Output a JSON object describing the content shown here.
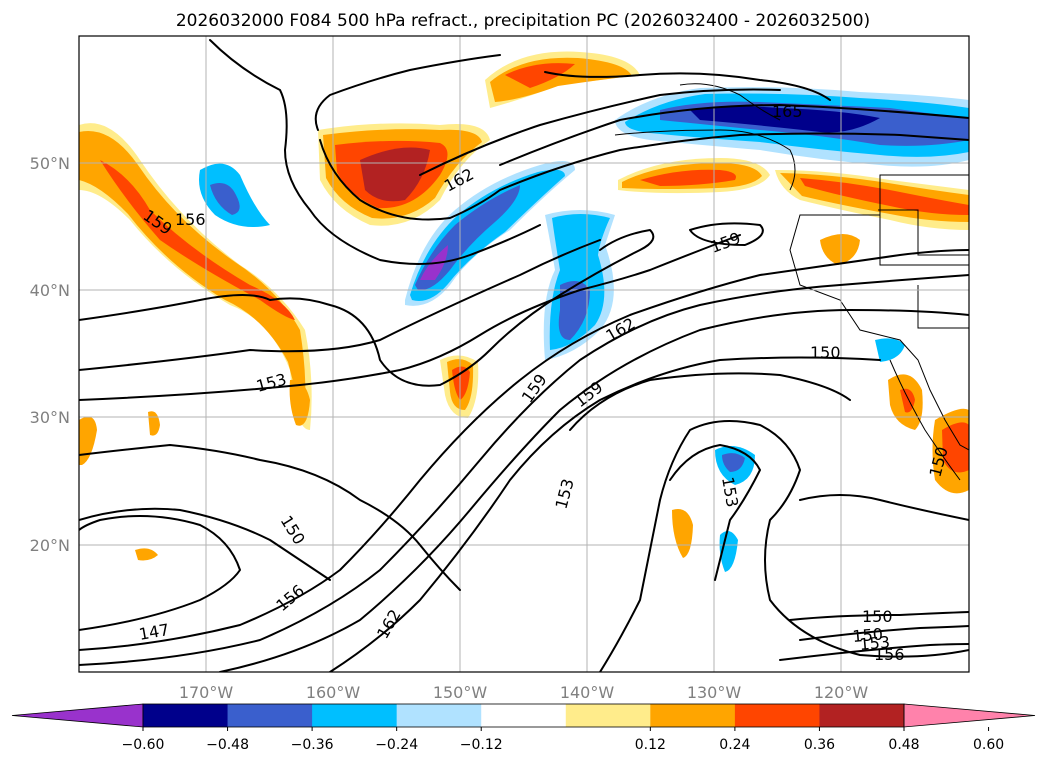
{
  "title": "2026032000 F084 500 hPa refract., precipitation PC (2026032400 - 2026032500)",
  "lon_labels": [
    "170°W",
    "160°W",
    "150°W",
    "140°W",
    "130°W",
    "120°W"
  ],
  "lat_labels": [
    "50°N",
    "40°N",
    "30°N",
    "20°N"
  ],
  "colorbar": {
    "ticks": [
      "−0.60",
      "−0.48",
      "−0.36",
      "−0.24",
      "−0.12",
      "0.12",
      "0.24",
      "0.36",
      "0.48",
      "0.60"
    ],
    "colors": [
      "#9932CC",
      "#00008B",
      "#3A5FCD",
      "#00BFFF",
      "#B0E2FF",
      "#FFFFFF",
      "#FFEC8B",
      "#FFA500",
      "#FF4500",
      "#B22222",
      "#FF82AB"
    ]
  },
  "contour_labels": [
    "159",
    "156",
    "153",
    "165",
    "162",
    "159",
    "162",
    "159",
    "159",
    "153",
    "150",
    "150",
    "156",
    "162",
    "147",
    "150",
    "153",
    "156",
    "153",
    "150",
    "150"
  ]
}
